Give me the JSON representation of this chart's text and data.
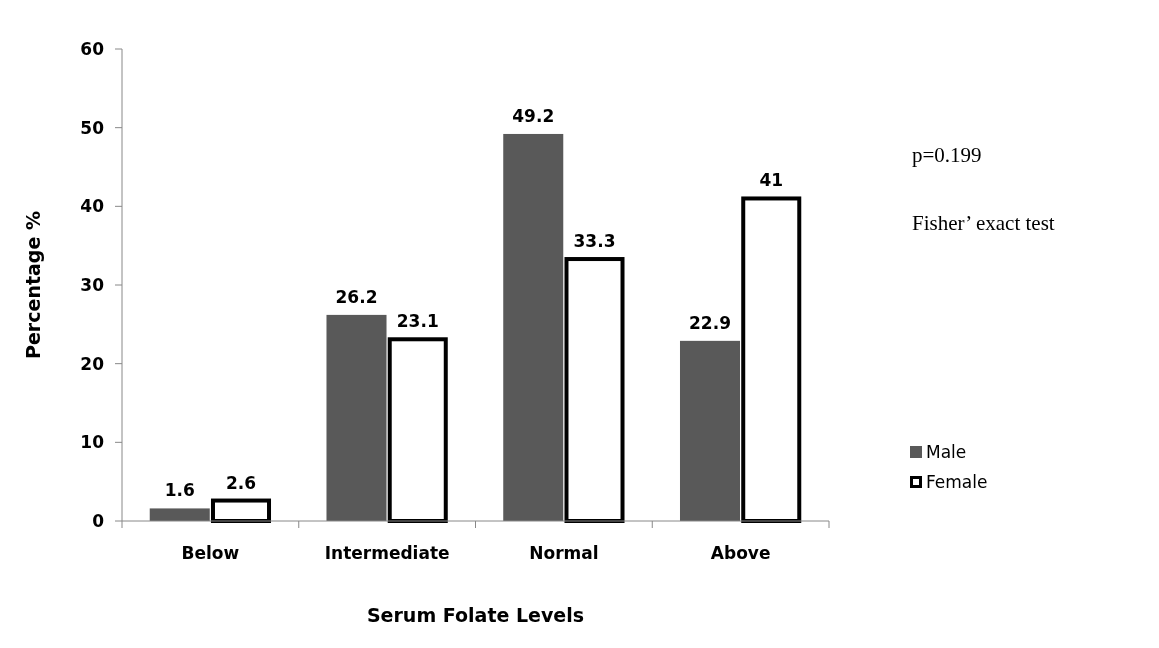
{
  "chart_data": {
    "type": "bar",
    "xlabel": "Serum Folate Levels",
    "ylabel": "Percentage %",
    "categories": [
      "Below",
      "Intermediate",
      "Normal",
      "Above"
    ],
    "series": [
      {
        "name": "Male",
        "color": "#595959",
        "values": [
          1.6,
          26.2,
          49.2,
          22.9
        ]
      },
      {
        "name": "Female",
        "color": "#ffffff",
        "values": [
          2.6,
          23.1,
          33.3,
          41
        ]
      }
    ],
    "ylim": [
      0,
      60
    ],
    "yticks": [
      0,
      10,
      20,
      30,
      40,
      50,
      60
    ],
    "data_labels": true,
    "legend": "right",
    "grid": false,
    "annotations": [
      "p=0.199",
      "Fisher’ exact test"
    ]
  }
}
